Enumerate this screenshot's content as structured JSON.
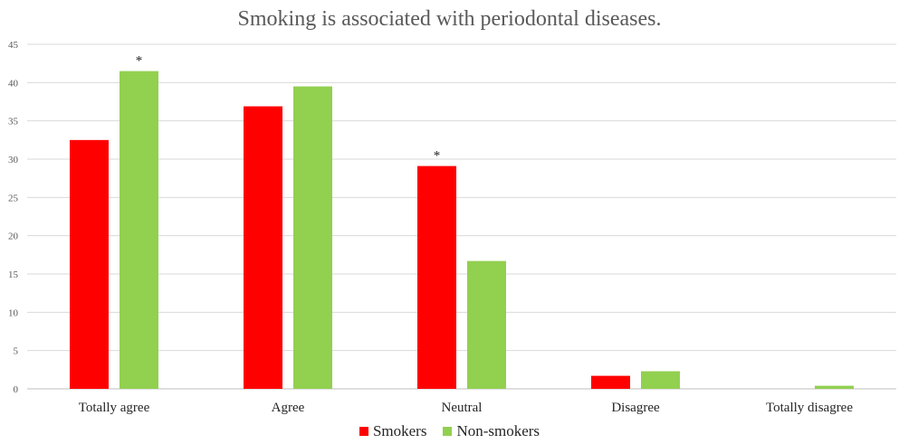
{
  "chart_data": {
    "type": "bar",
    "title": "Smoking is associated with periodontal diseases.",
    "xlabel": "",
    "ylabel": "",
    "ylim": [
      0,
      45
    ],
    "yticks": [
      0,
      5,
      10,
      15,
      20,
      25,
      30,
      35,
      40,
      45
    ],
    "grid": true,
    "legend_position": "bottom",
    "categories": [
      "Totally agree",
      "Agree",
      "Neutral",
      "Disagree",
      "Totally disagree"
    ],
    "series": [
      {
        "name": "Smokers",
        "color": "#ff0000",
        "values": [
          32.5,
          36.9,
          29.1,
          1.7,
          0
        ]
      },
      {
        "name": "Non-smokers",
        "color": "#92d050",
        "values": [
          41.5,
          39.5,
          16.7,
          2.3,
          0.4
        ]
      }
    ],
    "annotations": [
      {
        "text": "*",
        "category": "Totally agree",
        "series": "Non-smokers"
      },
      {
        "text": "*",
        "category": "Neutral",
        "series": "Smokers"
      }
    ]
  }
}
